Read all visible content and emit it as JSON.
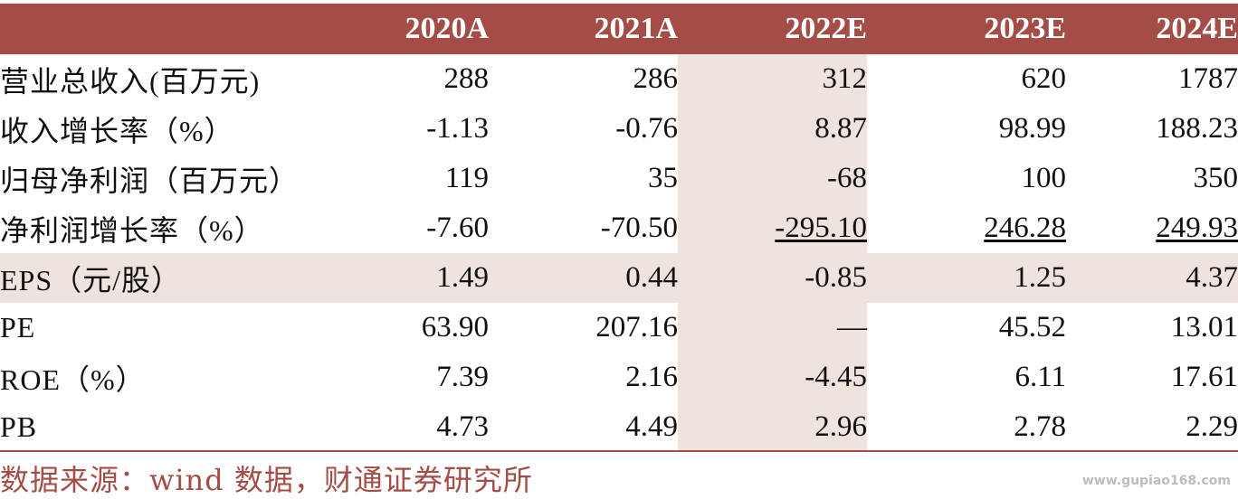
{
  "table": {
    "headers": [
      "",
      "2020A",
      "2021A",
      "2022E",
      "2023E",
      "2024E"
    ],
    "rows": [
      {
        "label": "营业总收入(百万元)",
        "values": [
          "288",
          "286",
          "312",
          "620",
          "1787"
        ]
      },
      {
        "label": "收入增长率（%）",
        "values": [
          "-1.13",
          "-0.76",
          "8.87",
          "98.99",
          "188.23"
        ]
      },
      {
        "label": "归母净利润（百万元）",
        "values": [
          "119",
          "35",
          "-68",
          "100",
          "350"
        ]
      },
      {
        "label": "净利润增长率（%）",
        "values": [
          "-7.60",
          "-70.50",
          "-295.10",
          "246.28",
          "249.93"
        ]
      },
      {
        "label": "EPS（元/股）",
        "values": [
          "1.49",
          "0.44",
          "-0.85",
          "1.25",
          "4.37"
        ]
      },
      {
        "label": "PE",
        "values": [
          "63.90",
          "207.16",
          "—",
          "45.52",
          "13.01"
        ]
      },
      {
        "label": "ROE（%）",
        "values": [
          "7.39",
          "2.16",
          "-4.45",
          "6.11",
          "17.61"
        ]
      },
      {
        "label": "PB",
        "values": [
          "4.73",
          "4.49",
          "2.96",
          "2.78",
          "2.29"
        ]
      }
    ]
  },
  "source": "数据来源：wind 数据，财通证券研究所",
  "watermark": "www.gupiao168.com",
  "colors": {
    "header_bg": "#a34d46",
    "shade": "#efe3de",
    "source_text": "#a34d46"
  }
}
